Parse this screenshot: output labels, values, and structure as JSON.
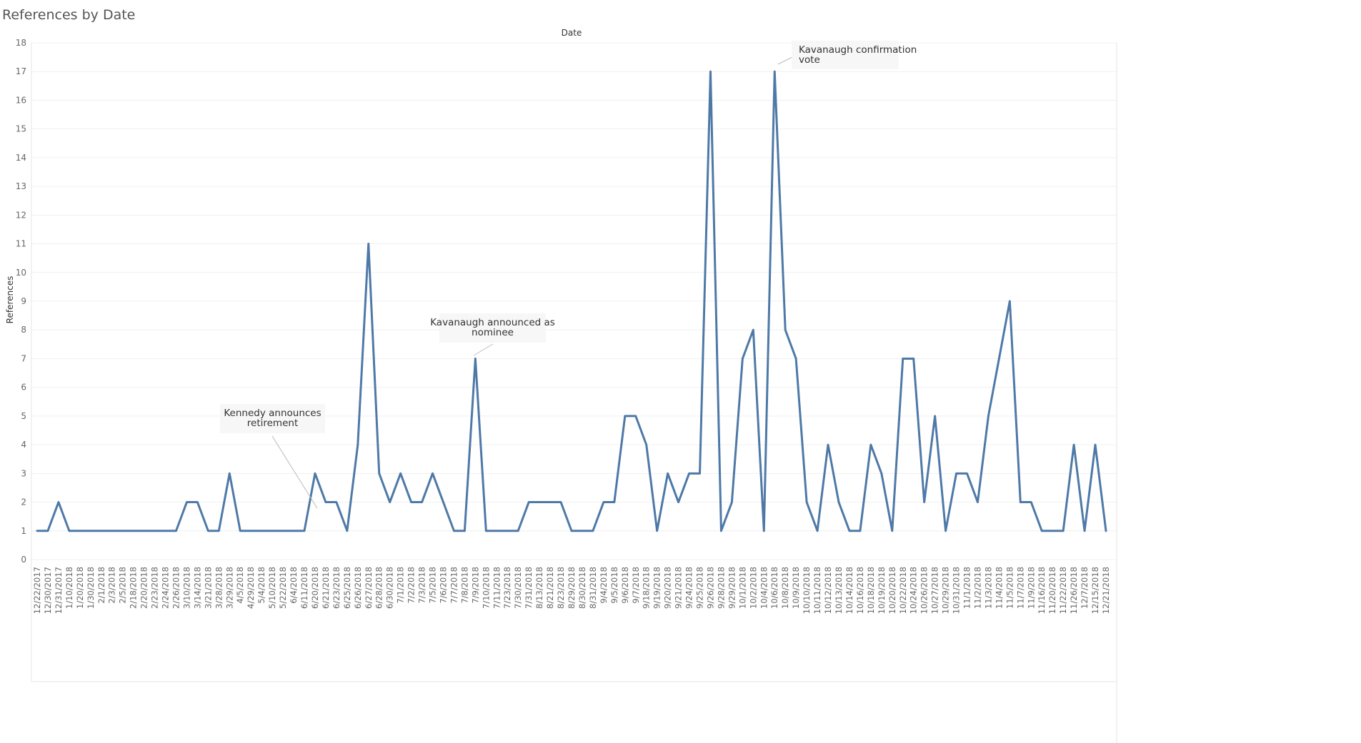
{
  "chart_data": {
    "type": "line",
    "title": "References by Date",
    "xlabel": "Date",
    "ylabel": "References",
    "ylim": [
      0,
      18
    ],
    "yticks": [
      0,
      1,
      2,
      3,
      4,
      5,
      6,
      7,
      8,
      9,
      10,
      11,
      12,
      13,
      14,
      15,
      16,
      17,
      18
    ],
    "grid": true,
    "line_color": "#4e79a7",
    "categories": [
      "12/22/2017",
      "12/30/2017",
      "12/31/2017",
      "1/10/2018",
      "1/20/2018",
      "1/30/2018",
      "2/1/2018",
      "2/3/2018",
      "2/5/2018",
      "2/18/2018",
      "2/20/2018",
      "2/23/2018",
      "2/24/2018",
      "2/26/2018",
      "3/10/2018",
      "3/14/2018",
      "3/21/2018",
      "3/28/2018",
      "3/29/2018",
      "4/5/2018",
      "4/29/2018",
      "5/4/2018",
      "5/10/2018",
      "5/22/2018",
      "6/4/2018",
      "6/11/2018",
      "6/20/2018",
      "6/21/2018",
      "6/23/2018",
      "6/25/2018",
      "6/26/2018",
      "6/27/2018",
      "6/28/2018",
      "6/30/2018",
      "7/1/2018",
      "7/2/2018",
      "7/3/2018",
      "7/5/2018",
      "7/6/2018",
      "7/7/2018",
      "7/8/2018",
      "7/9/2018",
      "7/10/2018",
      "7/11/2018",
      "7/23/2018",
      "7/30/2018",
      "7/31/2018",
      "8/13/2018",
      "8/21/2018",
      "8/23/2018",
      "8/29/2018",
      "8/30/2018",
      "8/31/2018",
      "9/4/2018",
      "9/5/2018",
      "9/6/2018",
      "9/7/2018",
      "9/18/2018",
      "9/19/2018",
      "9/20/2018",
      "9/21/2018",
      "9/24/2018",
      "9/25/2018",
      "9/26/2018",
      "9/28/2018",
      "9/29/2018",
      "10/1/2018",
      "10/2/2018",
      "10/4/2018",
      "10/6/2018",
      "10/8/2018",
      "10/9/2018",
      "10/10/2018",
      "10/11/2018",
      "10/12/2018",
      "10/13/2018",
      "10/14/2018",
      "10/16/2018",
      "10/18/2018",
      "10/19/2018",
      "10/20/2018",
      "10/22/2018",
      "10/24/2018",
      "10/26/2018",
      "10/27/2018",
      "10/29/2018",
      "10/31/2018",
      "11/1/2018",
      "11/2/2018",
      "11/3/2018",
      "11/4/2018",
      "11/5/2018",
      "11/7/2018",
      "11/9/2018",
      "11/16/2018",
      "11/20/2018",
      "11/22/2018",
      "11/26/2018",
      "12/7/2018",
      "12/15/2018",
      "12/21/2018"
    ],
    "series": [
      {
        "values": [
          1,
          1,
          2,
          1,
          1,
          1,
          1,
          1,
          1,
          1,
          1,
          1,
          1,
          1,
          2,
          2,
          1,
          1,
          3,
          1,
          1,
          1,
          1,
          1,
          1,
          1,
          3,
          2,
          2,
          1,
          4,
          11,
          3,
          2,
          3,
          2,
          2,
          3,
          2,
          1,
          1,
          7,
          1,
          1,
          1,
          1,
          2,
          2,
          2,
          2,
          1,
          1,
          1,
          2,
          2,
          5,
          5,
          4,
          1,
          3,
          2,
          3,
          3,
          17,
          1,
          2,
          7,
          8,
          1,
          17,
          8,
          7,
          2,
          1,
          4,
          2,
          1,
          1,
          4,
          3,
          1,
          7,
          7,
          2,
          5,
          1,
          3,
          3,
          2,
          5,
          7,
          9,
          2,
          2,
          1,
          1,
          1,
          4,
          1,
          4,
          1
        ]
      }
    ],
    "annotations": [
      {
        "text_lines": [
          "Kennedy announces",
          "retirement"
        ],
        "target_category": "6/21/2018"
      },
      {
        "text_lines": [
          "Kavanaugh announced as",
          "nominee"
        ],
        "target_category": "7/9/2018"
      },
      {
        "text_lines": [
          "Kavanaugh confirmation",
          "vote"
        ],
        "target_category": "10/6/2018"
      }
    ]
  }
}
